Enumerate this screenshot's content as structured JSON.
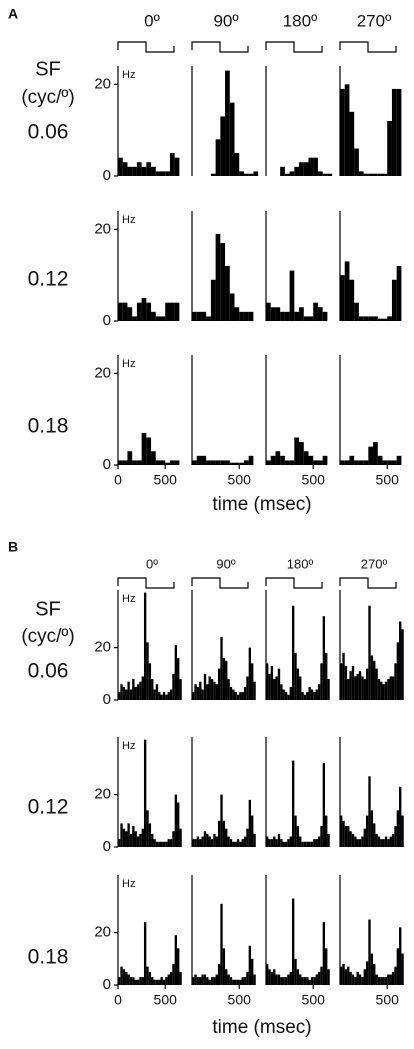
{
  "figure": {
    "panels": [
      {
        "label": "A",
        "sf_label": "SF",
        "sf_unit": "(cyc/º)",
        "columns": [
          "0º",
          "90º",
          "180º",
          "270º"
        ],
        "rows": [
          "0.06",
          "0.12",
          "0.18"
        ],
        "xlabel": "time (msec)"
      },
      {
        "label": "B",
        "sf_label": "SF",
        "sf_unit": "(cyc/º)",
        "columns": [
          "0º",
          "90º",
          "180º",
          "270º"
        ],
        "rows": [
          "0.06",
          "0.12",
          "0.18"
        ],
        "xlabel": "time (msec)"
      }
    ]
  },
  "chart_data": [
    {
      "type": "histogram",
      "ylabel": "Hz",
      "bins": [
        0,
        50,
        100,
        150,
        200,
        250,
        300,
        350,
        400,
        450,
        500,
        550,
        600,
        650,
        700
      ],
      "values": [
        4,
        3,
        2,
        2,
        3,
        2,
        3,
        2,
        1,
        1,
        1,
        5,
        4,
        0
      ],
      "xlim": [
        0,
        720
      ],
      "ylim": [
        0,
        24
      ],
      "yticks": [
        0,
        20
      ]
    },
    {
      "type": "histogram",
      "bins": [
        0,
        50,
        100,
        150,
        200,
        250,
        300,
        350,
        400,
        450,
        500,
        550,
        600,
        650,
        700
      ],
      "values": [
        0,
        0,
        0,
        0,
        0.5,
        8,
        13,
        23,
        16,
        5,
        1,
        0.5,
        0.5,
        1
      ],
      "xlim": [
        0,
        720
      ],
      "ylim": [
        0,
        24
      ]
    },
    {
      "type": "histogram",
      "bins": [
        0,
        50,
        100,
        150,
        200,
        250,
        300,
        350,
        400,
        450,
        500,
        550,
        600,
        650,
        700
      ],
      "values": [
        0,
        0,
        0,
        2,
        0.5,
        1,
        2,
        3,
        3,
        4,
        4,
        1,
        0.5,
        0.5
      ],
      "xlim": [
        0,
        720
      ],
      "ylim": [
        0,
        24
      ]
    },
    {
      "type": "histogram",
      "bins": [
        0,
        50,
        100,
        150,
        200,
        250,
        300,
        350,
        400,
        450,
        500,
        550,
        600,
        650,
        700
      ],
      "values": [
        19,
        20,
        14,
        6,
        1,
        0.5,
        0.5,
        0.5,
        0.5,
        0.5,
        12,
        19,
        19,
        0
      ],
      "xlim": [
        0,
        720
      ],
      "ylim": [
        0,
        24
      ]
    },
    {
      "type": "histogram",
      "ylabel": "Hz",
      "bins": [
        0,
        50,
        100,
        150,
        200,
        250,
        300,
        350,
        400,
        450,
        500,
        550,
        600,
        650,
        700
      ],
      "values": [
        4,
        4,
        3,
        1,
        4,
        5,
        4,
        2,
        1,
        1,
        4,
        4,
        4,
        0
      ],
      "xlim": [
        0,
        720
      ],
      "ylim": [
        0,
        24
      ],
      "yticks": [
        0,
        20
      ]
    },
    {
      "type": "histogram",
      "bins": [
        0,
        50,
        100,
        150,
        200,
        250,
        300,
        350,
        400,
        450,
        500,
        550,
        600,
        650,
        700
      ],
      "values": [
        2,
        2,
        2,
        1,
        9,
        19,
        17,
        12,
        6,
        3,
        2,
        2,
        2,
        0
      ],
      "xlim": [
        0,
        720
      ],
      "ylim": [
        0,
        24
      ]
    },
    {
      "type": "histogram",
      "bins": [
        0,
        50,
        100,
        150,
        200,
        250,
        300,
        350,
        400,
        450,
        500,
        550,
        600,
        650,
        700
      ],
      "values": [
        4,
        3,
        3,
        2,
        2,
        11,
        2,
        3,
        1,
        1,
        4,
        3,
        2,
        0
      ],
      "xlim": [
        0,
        720
      ],
      "ylim": [
        0,
        24
      ]
    },
    {
      "type": "histogram",
      "bins": [
        0,
        50,
        100,
        150,
        200,
        250,
        300,
        350,
        400,
        450,
        500,
        550,
        600,
        650,
        700
      ],
      "values": [
        10,
        13,
        9,
        4,
        1,
        1,
        1,
        1,
        0.5,
        0.5,
        1,
        9,
        12,
        0
      ],
      "xlim": [
        0,
        720
      ],
      "ylim": [
        0,
        24
      ]
    },
    {
      "type": "histogram",
      "ylabel": "Hz",
      "bins": [
        0,
        50,
        100,
        150,
        200,
        250,
        300,
        350,
        400,
        450,
        500,
        550,
        600,
        650,
        700
      ],
      "values": [
        1,
        1,
        3,
        1,
        1,
        7,
        6,
        3,
        1,
        1,
        0.5,
        1,
        1,
        0
      ],
      "xlim": [
        0,
        720
      ],
      "ylim": [
        0,
        24
      ],
      "yticks": [
        0,
        20
      ],
      "xticks": [
        0,
        500
      ]
    },
    {
      "type": "histogram",
      "bins": [
        0,
        50,
        100,
        150,
        200,
        250,
        300,
        350,
        400,
        450,
        500,
        550,
        600,
        650,
        700
      ],
      "values": [
        1,
        2,
        2,
        1,
        1,
        1,
        1,
        1,
        0.5,
        0.5,
        0.5,
        1,
        2,
        0
      ],
      "xlim": [
        0,
        720
      ],
      "ylim": [
        0,
        24
      ],
      "xticks": [
        500
      ]
    },
    {
      "type": "histogram",
      "bins": [
        0,
        50,
        100,
        150,
        200,
        250,
        300,
        350,
        400,
        450,
        500,
        550,
        600,
        650,
        700
      ],
      "values": [
        1,
        2,
        3,
        2,
        1,
        1,
        6,
        5,
        3,
        2,
        1,
        1,
        2,
        0
      ],
      "xlim": [
        0,
        720
      ],
      "ylim": [
        0,
        24
      ],
      "xticks": [
        500
      ]
    },
    {
      "type": "histogram",
      "bins": [
        0,
        50,
        100,
        150,
        200,
        250,
        300,
        350,
        400,
        450,
        500,
        550,
        600,
        650,
        700
      ],
      "values": [
        1,
        1,
        2,
        1,
        1,
        1,
        4,
        5,
        2,
        1,
        1,
        1,
        2,
        0
      ],
      "xlim": [
        0,
        720
      ],
      "ylim": [
        0,
        24
      ],
      "xticks": [
        500
      ]
    },
    {
      "type": "histogram",
      "ylabel": "Hz",
      "bins": [
        0,
        25,
        50,
        75,
        100,
        125,
        150,
        175,
        200,
        225,
        250,
        275,
        300,
        325,
        350,
        375,
        400,
        425,
        450,
        475,
        500,
        525,
        550,
        575,
        600,
        625,
        650,
        675,
        700
      ],
      "values": [
        3,
        6,
        5,
        4,
        7,
        4,
        8,
        5,
        6,
        7,
        9,
        41,
        22,
        14,
        8,
        4,
        6,
        3,
        2,
        3,
        2,
        3,
        4,
        10,
        21,
        16,
        8,
        0
      ],
      "xlim": [
        0,
        720
      ],
      "ylim": [
        0,
        42
      ],
      "yticks": [
        0,
        20
      ]
    },
    {
      "type": "histogram",
      "bins": [
        0,
        25,
        50,
        75,
        100,
        125,
        150,
        175,
        200,
        225,
        250,
        275,
        300,
        325,
        350,
        375,
        400,
        425,
        450,
        475,
        500,
        525,
        550,
        575,
        600,
        625,
        650,
        675,
        700
      ],
      "values": [
        3,
        6,
        5,
        7,
        4,
        10,
        6,
        9,
        8,
        7,
        6,
        12,
        24,
        16,
        15,
        8,
        5,
        4,
        3,
        2,
        3,
        3,
        5,
        9,
        20,
        14,
        7,
        0
      ],
      "xlim": [
        0,
        720
      ],
      "ylim": [
        0,
        42
      ]
    },
    {
      "type": "histogram",
      "bins": [
        0,
        25,
        50,
        75,
        100,
        125,
        150,
        175,
        200,
        225,
        250,
        275,
        300,
        325,
        350,
        375,
        400,
        425,
        450,
        475,
        500,
        525,
        550,
        575,
        600,
        625,
        650,
        675,
        700
      ],
      "values": [
        14,
        10,
        13,
        8,
        9,
        12,
        6,
        4,
        3,
        2,
        5,
        36,
        18,
        12,
        9,
        3,
        2,
        3,
        5,
        4,
        3,
        4,
        6,
        14,
        32,
        18,
        8,
        0
      ],
      "xlim": [
        0,
        720
      ],
      "ylim": [
        0,
        42
      ]
    },
    {
      "type": "histogram",
      "bins": [
        0,
        25,
        50,
        75,
        100,
        125,
        150,
        175,
        200,
        225,
        250,
        275,
        300,
        325,
        350,
        375,
        400,
        425,
        450,
        475,
        500,
        525,
        550,
        575,
        600,
        625,
        650,
        675,
        700
      ],
      "values": [
        14,
        18,
        13,
        8,
        11,
        13,
        9,
        10,
        11,
        9,
        8,
        12,
        36,
        17,
        15,
        12,
        8,
        7,
        6,
        7,
        8,
        9,
        9,
        14,
        22,
        30,
        27,
        0
      ],
      "xlim": [
        0,
        720
      ],
      "ylim": [
        0,
        42
      ]
    },
    {
      "type": "histogram",
      "ylabel": "Hz",
      "bins": [
        0,
        25,
        50,
        75,
        100,
        125,
        150,
        175,
        200,
        225,
        250,
        275,
        300,
        325,
        350,
        375,
        400,
        425,
        450,
        475,
        500,
        525,
        550,
        575,
        600,
        625,
        650,
        675,
        700
      ],
      "values": [
        3,
        9,
        7,
        6,
        9,
        5,
        8,
        6,
        4,
        5,
        7,
        41,
        14,
        9,
        5,
        3,
        2,
        2,
        2,
        2,
        2,
        3,
        3,
        6,
        20,
        17,
        7,
        0
      ],
      "xlim": [
        0,
        720
      ],
      "ylim": [
        0,
        42
      ],
      "yticks": [
        0,
        20
      ]
    },
    {
      "type": "histogram",
      "bins": [
        0,
        25,
        50,
        75,
        100,
        125,
        150,
        175,
        200,
        225,
        250,
        275,
        300,
        325,
        350,
        375,
        400,
        425,
        450,
        475,
        500,
        525,
        550,
        575,
        600,
        625,
        650,
        675,
        700
      ],
      "values": [
        3,
        3,
        4,
        3,
        4,
        6,
        5,
        4,
        3,
        5,
        4,
        10,
        20,
        10,
        7,
        4,
        3,
        2,
        2,
        3,
        2,
        3,
        4,
        7,
        18,
        12,
        5,
        0
      ],
      "xlim": [
        0,
        720
      ],
      "ylim": [
        0,
        42
      ]
    },
    {
      "type": "histogram",
      "bins": [
        0,
        25,
        50,
        75,
        100,
        125,
        150,
        175,
        200,
        225,
        250,
        275,
        300,
        325,
        350,
        375,
        400,
        425,
        450,
        475,
        500,
        525,
        550,
        575,
        600,
        625,
        650,
        675,
        700
      ],
      "values": [
        4,
        3,
        3,
        4,
        3,
        5,
        3,
        2,
        2,
        3,
        4,
        33,
        12,
        8,
        4,
        2,
        2,
        2,
        2,
        2,
        3,
        3,
        4,
        8,
        32,
        12,
        5,
        0
      ],
      "xlim": [
        0,
        720
      ],
      "ylim": [
        0,
        42
      ]
    },
    {
      "type": "histogram",
      "bins": [
        0,
        25,
        50,
        75,
        100,
        125,
        150,
        175,
        200,
        225,
        250,
        275,
        300,
        325,
        350,
        375,
        400,
        425,
        450,
        475,
        500,
        525,
        550,
        575,
        600,
        625,
        650,
        675,
        700
      ],
      "values": [
        12,
        10,
        8,
        8,
        6,
        5,
        4,
        3,
        3,
        4,
        7,
        12,
        27,
        14,
        9,
        5,
        4,
        3,
        3,
        4,
        3,
        4,
        5,
        8,
        14,
        23,
        12,
        0
      ],
      "xlim": [
        0,
        720
      ],
      "ylim": [
        0,
        42
      ]
    },
    {
      "type": "histogram",
      "ylabel": "Hz",
      "bins": [
        0,
        25,
        50,
        75,
        100,
        125,
        150,
        175,
        200,
        225,
        250,
        275,
        300,
        325,
        350,
        375,
        400,
        425,
        450,
        475,
        500,
        525,
        550,
        575,
        600,
        625,
        650,
        675,
        700
      ],
      "values": [
        3,
        7,
        6,
        5,
        4,
        3,
        3,
        2,
        2,
        3,
        3,
        24,
        7,
        5,
        3,
        2,
        2,
        2,
        3,
        2,
        3,
        4,
        5,
        8,
        19,
        14,
        5,
        0
      ],
      "xlim": [
        0,
        720
      ],
      "ylim": [
        0,
        42
      ],
      "yticks": [
        0,
        20
      ],
      "xticks": [
        0,
        500
      ]
    },
    {
      "type": "histogram",
      "bins": [
        0,
        25,
        50,
        75,
        100,
        125,
        150,
        175,
        200,
        225,
        250,
        275,
        300,
        325,
        350,
        375,
        400,
        425,
        450,
        475,
        500,
        525,
        550,
        575,
        600,
        625,
        650,
        675,
        700
      ],
      "values": [
        3,
        4,
        3,
        3,
        4,
        4,
        3,
        2,
        3,
        3,
        4,
        8,
        31,
        14,
        6,
        4,
        3,
        2,
        2,
        2,
        2,
        3,
        3,
        5,
        15,
        10,
        4,
        0
      ],
      "xlim": [
        0,
        720
      ],
      "ylim": [
        0,
        42
      ],
      "xticks": [
        500
      ]
    },
    {
      "type": "histogram",
      "bins": [
        0,
        25,
        50,
        75,
        100,
        125,
        150,
        175,
        200,
        225,
        250,
        275,
        300,
        325,
        350,
        375,
        400,
        425,
        450,
        475,
        500,
        525,
        550,
        575,
        600,
        625,
        650,
        675,
        700
      ],
      "values": [
        8,
        6,
        5,
        6,
        4,
        4,
        3,
        3,
        3,
        4,
        5,
        33,
        10,
        6,
        4,
        3,
        3,
        3,
        2,
        3,
        3,
        4,
        5,
        7,
        24,
        14,
        6,
        0
      ],
      "xlim": [
        0,
        720
      ],
      "ylim": [
        0,
        42
      ],
      "xticks": [
        500
      ]
    },
    {
      "type": "histogram",
      "bins": [
        0,
        25,
        50,
        75,
        100,
        125,
        150,
        175,
        200,
        225,
        250,
        275,
        300,
        325,
        350,
        375,
        400,
        425,
        450,
        475,
        500,
        525,
        550,
        575,
        600,
        625,
        650,
        675,
        700
      ],
      "values": [
        7,
        8,
        6,
        7,
        5,
        4,
        3,
        5,
        4,
        3,
        6,
        9,
        25,
        12,
        8,
        4,
        3,
        3,
        3,
        3,
        4,
        4,
        5,
        7,
        14,
        22,
        12,
        0
      ],
      "xlim": [
        0,
        720
      ],
      "ylim": [
        0,
        42
      ],
      "xticks": [
        500
      ]
    }
  ]
}
